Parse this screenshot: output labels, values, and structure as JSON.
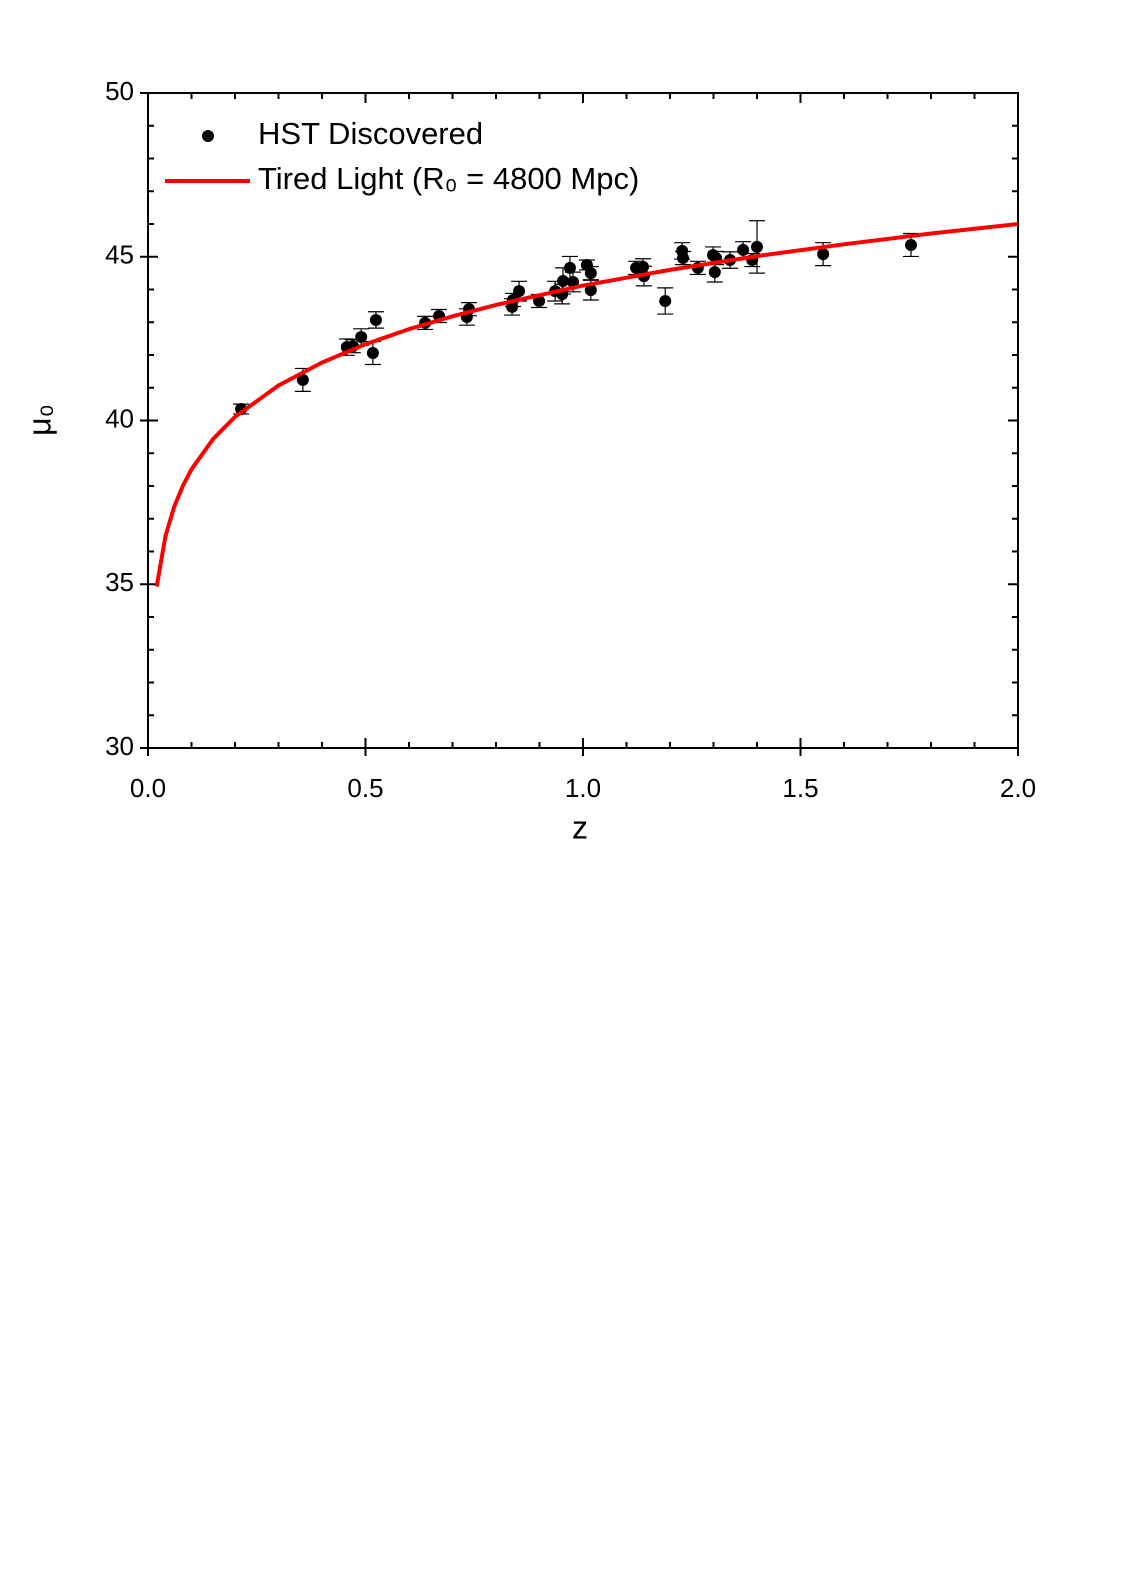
{
  "chart_data": {
    "type": "scatter",
    "xlabel": "z",
    "ylabel": "μ₀",
    "xlim": [
      0,
      2
    ],
    "ylim": [
      30,
      50
    ],
    "xticks": [
      {
        "value": 0,
        "label": "0.0"
      },
      0.5,
      {
        "value": 1,
        "label": "1.0"
      },
      1.5,
      {
        "value": 2,
        "label": "2.0"
      }
    ],
    "yticks": [
      30,
      35,
      40,
      45,
      50
    ],
    "xminorticks": [
      0.1,
      0.2,
      0.3,
      0.4,
      0.6,
      0.7,
      0.8,
      0.9,
      1.1,
      1.2,
      1.3,
      1.4,
      1.6,
      1.7,
      1.8,
      1.9
    ],
    "yminorticks": [
      31,
      32,
      33,
      34,
      36,
      37,
      38,
      39,
      41,
      42,
      43,
      44,
      46,
      47,
      48,
      49
    ],
    "legend": "upper left",
    "series": [
      {
        "name": "HST Discovered",
        "type": "scatter",
        "color": "#000000",
        "x": [
          0.214,
          0.356,
          0.457,
          0.471,
          0.49,
          0.517,
          0.524,
          0.637,
          0.669,
          0.733,
          0.738,
          0.837,
          0.839,
          0.853,
          0.899,
          0.936,
          0.952,
          0.954,
          0.97,
          0.977,
          1.009,
          1.018,
          1.018,
          1.122,
          1.138,
          1.14,
          1.189,
          1.228,
          1.23,
          1.264,
          1.299,
          1.306,
          1.303,
          1.338,
          1.368,
          1.389,
          1.4,
          1.552,
          1.754
        ],
        "values": [
          40.35,
          41.24,
          42.24,
          42.27,
          42.55,
          42.06,
          43.07,
          42.98,
          43.19,
          43.16,
          43.4,
          43.47,
          43.68,
          43.95,
          43.65,
          43.95,
          43.86,
          44.26,
          44.66,
          44.23,
          44.75,
          44.5,
          43.98,
          44.66,
          44.69,
          44.41,
          43.65,
          45.18,
          44.96,
          44.66,
          45.05,
          44.96,
          44.53,
          44.9,
          45.21,
          44.9,
          45.3,
          45.08,
          45.36
        ],
        "errors": [
          0.15,
          0.35,
          0.25,
          0.2,
          0.25,
          0.35,
          0.25,
          0.2,
          0.2,
          0.25,
          0.2,
          0.25,
          0.2,
          0.3,
          0.2,
          0.3,
          0.3,
          0.4,
          0.35,
          0.3,
          0.15,
          0.2,
          0.3,
          0.2,
          0.25,
          0.3,
          0.4,
          0.25,
          0.2,
          0.2,
          0.25,
          0.2,
          0.3,
          0.25,
          0.25,
          0.2,
          0.8,
          0.35,
          0.35
        ]
      },
      {
        "name": "Tired Light (R₀ = 4800 Mpc)",
        "type": "line",
        "color": "#ff0000",
        "x": [
          0.02,
          0.04,
          0.06,
          0.08,
          0.1,
          0.15,
          0.2,
          0.3,
          0.4,
          0.5,
          0.6,
          0.7,
          0.8,
          1.0,
          1.2,
          1.4,
          1.6,
          1.8,
          2.0
        ],
        "values": [
          34.93,
          36.46,
          37.36,
          38.0,
          38.51,
          39.44,
          40.11,
          41.07,
          41.77,
          42.33,
          42.79,
          43.18,
          43.53,
          44.12,
          44.6,
          45.02,
          45.38,
          45.71,
          46.0
        ]
      }
    ]
  }
}
